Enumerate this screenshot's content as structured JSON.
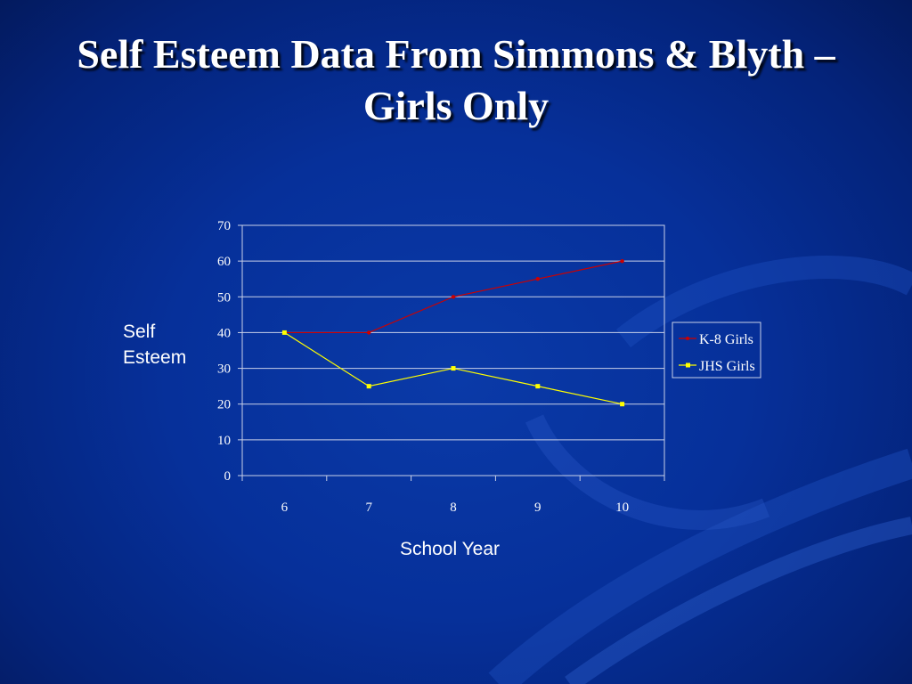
{
  "slide": {
    "title": "Self Esteem Data From Simmons & Blyth – Girls Only"
  },
  "chart_data": {
    "type": "line",
    "x": [
      6,
      7,
      8,
      9,
      10
    ],
    "xlabel": "School Year",
    "ylabel": "Self Esteem",
    "ylim": [
      0,
      70
    ],
    "yticks": [
      0,
      10,
      20,
      30,
      40,
      50,
      60,
      70
    ],
    "grid": true,
    "legend_position": "right",
    "series": [
      {
        "name": "K-8 Girls",
        "values": [
          40,
          40,
          50,
          55,
          60
        ],
        "color": "#cc0000"
      },
      {
        "name": "JHS Girls",
        "values": [
          40,
          25,
          30,
          25,
          20
        ],
        "color": "#ffff00"
      }
    ]
  }
}
